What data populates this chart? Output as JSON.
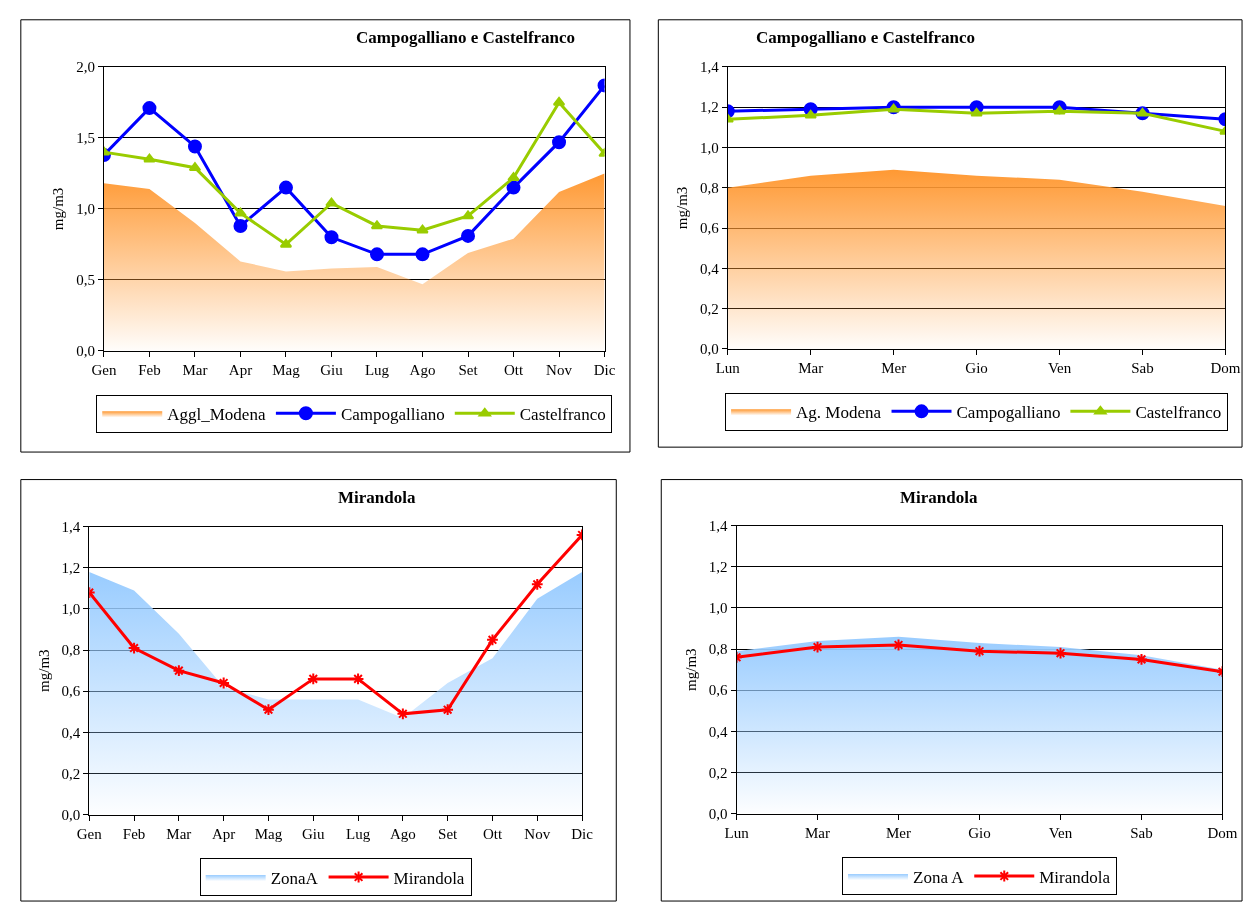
{
  "chart_data": [
    {
      "type": "line",
      "title": "Campogalliano e Castelfranco",
      "ylabel": "mg/m3",
      "categories": [
        "Gen",
        "Feb",
        "Mar",
        "Apr",
        "Mag",
        "Giu",
        "Lug",
        "Ago",
        "Set",
        "Ott",
        "Nov",
        "Dic"
      ],
      "ylim": [
        0,
        2
      ],
      "yticks": [
        {
          "value": 0,
          "label": "0,0"
        },
        {
          "value": 0.5,
          "label": "0,5"
        },
        {
          "value": 1,
          "label": "1,0"
        },
        {
          "value": 1.5,
          "label": "1,5"
        },
        {
          "value": 2,
          "label": "2,0"
        }
      ],
      "grid": "y",
      "legend": "bottom",
      "series": [
        {
          "name": "Aggl_Modena",
          "type": "area",
          "color": "#ff9933",
          "values": [
            1.18,
            1.14,
            0.9,
            0.63,
            0.56,
            0.58,
            0.59,
            0.47,
            0.69,
            0.79,
            1.12,
            1.25
          ]
        },
        {
          "name": "Campogalliano",
          "color": "#0000ff",
          "marker": "circle",
          "values": [
            1.38,
            1.71,
            1.44,
            0.88,
            1.15,
            0.8,
            0.68,
            0.68,
            0.81,
            1.15,
            1.47,
            1.87
          ]
        },
        {
          "name": "Castelfranco",
          "color": "#99cc00",
          "marker": "triangle",
          "values": [
            1.4,
            1.35,
            1.29,
            0.97,
            0.75,
            1.04,
            0.88,
            0.85,
            0.95,
            1.22,
            1.75,
            1.39
          ]
        }
      ]
    },
    {
      "type": "line",
      "title": "Campogalliano e Castelfranco",
      "ylabel": "mg/m3",
      "categories": [
        "Lun",
        "Mar",
        "Mer",
        "Gio",
        "Ven",
        "Sab",
        "Dom"
      ],
      "ylim": [
        0,
        1.4
      ],
      "yticks": [
        {
          "value": 0,
          "label": "0,0"
        },
        {
          "value": 0.2,
          "label": "0,2"
        },
        {
          "value": 0.4,
          "label": "0,4"
        },
        {
          "value": 0.6,
          "label": "0,6"
        },
        {
          "value": 0.8,
          "label": "0,8"
        },
        {
          "value": 1,
          "label": "1,0"
        },
        {
          "value": 1.2,
          "label": "1,2"
        },
        {
          "value": 1.4,
          "label": "1,4"
        }
      ],
      "grid": "y",
      "legend": "bottom",
      "series": [
        {
          "name": "Ag. Modena",
          "type": "area",
          "color": "#ff9933",
          "values": [
            0.8,
            0.86,
            0.89,
            0.86,
            0.84,
            0.78,
            0.71
          ]
        },
        {
          "name": "Campogalliano",
          "color": "#0000ff",
          "marker": "circle",
          "values": [
            1.18,
            1.19,
            1.2,
            1.2,
            1.2,
            1.17,
            1.14
          ]
        },
        {
          "name": "Castelfranco",
          "color": "#99cc00",
          "marker": "triangle",
          "values": [
            1.14,
            1.16,
            1.19,
            1.17,
            1.18,
            1.17,
            1.08
          ]
        }
      ]
    },
    {
      "type": "line",
      "title": "Mirandola",
      "ylabel": "mg/m3",
      "categories": [
        "Gen",
        "Feb",
        "Mar",
        "Apr",
        "Mag",
        "Giu",
        "Lug",
        "Ago",
        "Set",
        "Ott",
        "Nov",
        "Dic"
      ],
      "ylim": [
        0,
        1.4
      ],
      "yticks": [
        {
          "value": 0,
          "label": "0,0"
        },
        {
          "value": 0.2,
          "label": "0,2"
        },
        {
          "value": 0.4,
          "label": "0,4"
        },
        {
          "value": 0.6,
          "label": "0,6"
        },
        {
          "value": 0.8,
          "label": "0,8"
        },
        {
          "value": 1,
          "label": "1,0"
        },
        {
          "value": 1.2,
          "label": "1,2"
        },
        {
          "value": 1.4,
          "label": "1,4"
        }
      ],
      "grid": "y",
      "legend": "bottom",
      "series": [
        {
          "name": "ZonaA",
          "type": "area",
          "color": "#99ccff",
          "values": [
            1.18,
            1.09,
            0.88,
            0.62,
            0.56,
            0.56,
            0.56,
            0.47,
            0.64,
            0.76,
            1.05,
            1.18
          ]
        },
        {
          "name": "Mirandola",
          "color": "#ff0000",
          "marker": "cross",
          "values": [
            1.08,
            0.81,
            0.7,
            0.64,
            0.51,
            0.66,
            0.66,
            0.49,
            0.51,
            0.85,
            1.12,
            1.36
          ]
        }
      ]
    },
    {
      "type": "line",
      "title": "Mirandola",
      "ylabel": "mg/m3",
      "categories": [
        "Lun",
        "Mar",
        "Mer",
        "Gio",
        "Ven",
        "Sab",
        "Dom"
      ],
      "ylim": [
        0,
        1.4
      ],
      "yticks": [
        {
          "value": 0,
          "label": "0,0"
        },
        {
          "value": 0.2,
          "label": "0,2"
        },
        {
          "value": 0.4,
          "label": "0,4"
        },
        {
          "value": 0.6,
          "label": "0,6"
        },
        {
          "value": 0.8,
          "label": "0,8"
        },
        {
          "value": 1,
          "label": "1,0"
        },
        {
          "value": 1.2,
          "label": "1,2"
        },
        {
          "value": 1.4,
          "label": "1,4"
        }
      ],
      "grid": "y",
      "legend": "bottom",
      "series": [
        {
          "name": "Zona A",
          "type": "area",
          "color": "#99ccff",
          "values": [
            0.79,
            0.84,
            0.86,
            0.83,
            0.81,
            0.77,
            0.7
          ]
        },
        {
          "name": "Mirandola",
          "color": "#ff0000",
          "marker": "cross",
          "values": [
            0.76,
            0.81,
            0.82,
            0.79,
            0.78,
            0.75,
            0.69
          ]
        }
      ]
    }
  ]
}
